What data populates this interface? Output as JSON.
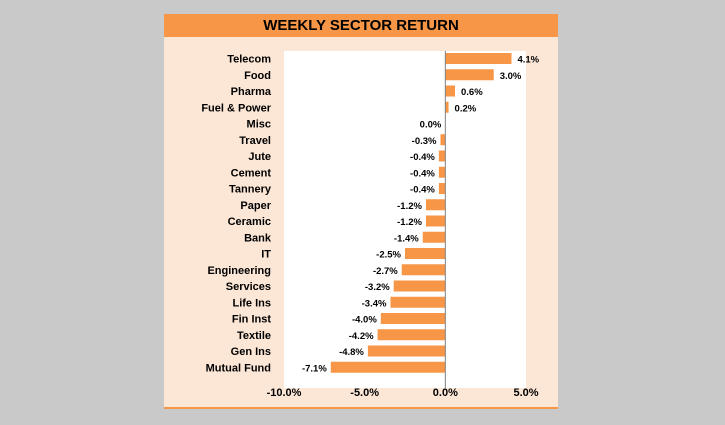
{
  "chart_data": {
    "type": "bar",
    "orientation": "horizontal",
    "title": "WEEKLY SECTOR RETURN",
    "categories": [
      "Telecom",
      "Food",
      "Pharma",
      "Fuel & Power",
      "Misc",
      "Travel",
      "Jute",
      "Cement",
      "Tannery",
      "Paper",
      "Ceramic",
      "Bank",
      "IT",
      "Engineering",
      "Services",
      "Life Ins",
      "Fin Inst",
      "Textile",
      "Gen Ins",
      "Mutual Fund"
    ],
    "values": [
      4.1,
      3.0,
      0.6,
      0.2,
      0.0,
      -0.3,
      -0.4,
      -0.4,
      -0.4,
      -1.2,
      -1.2,
      -1.4,
      -2.5,
      -2.7,
      -3.2,
      -3.4,
      -4.0,
      -4.2,
      -4.8,
      -7.1
    ],
    "value_labels": [
      "4.1%",
      "3.0%",
      "0.6%",
      "0.2%",
      "0.0%",
      "-0.3%",
      "-0.4%",
      "-0.4%",
      "-0.4%",
      "-1.2%",
      "-1.2%",
      "-1.4%",
      "-2.5%",
      "-2.7%",
      "-3.2%",
      "-3.4%",
      "-4.0%",
      "-4.2%",
      "-4.8%",
      "-7.1%"
    ],
    "xlim": [
      -10,
      5
    ],
    "xticks": [
      -10,
      -5,
      0,
      5
    ],
    "xtick_labels": [
      "-10.0%",
      "-5.0%",
      "0.0%",
      "5.0%"
    ],
    "xlabel": "",
    "ylabel": "",
    "grid": false,
    "bar_color": "#f79646",
    "plot_background": "#ffffff",
    "panel_background": "#fce7d6",
    "title_background": "#f79646"
  }
}
